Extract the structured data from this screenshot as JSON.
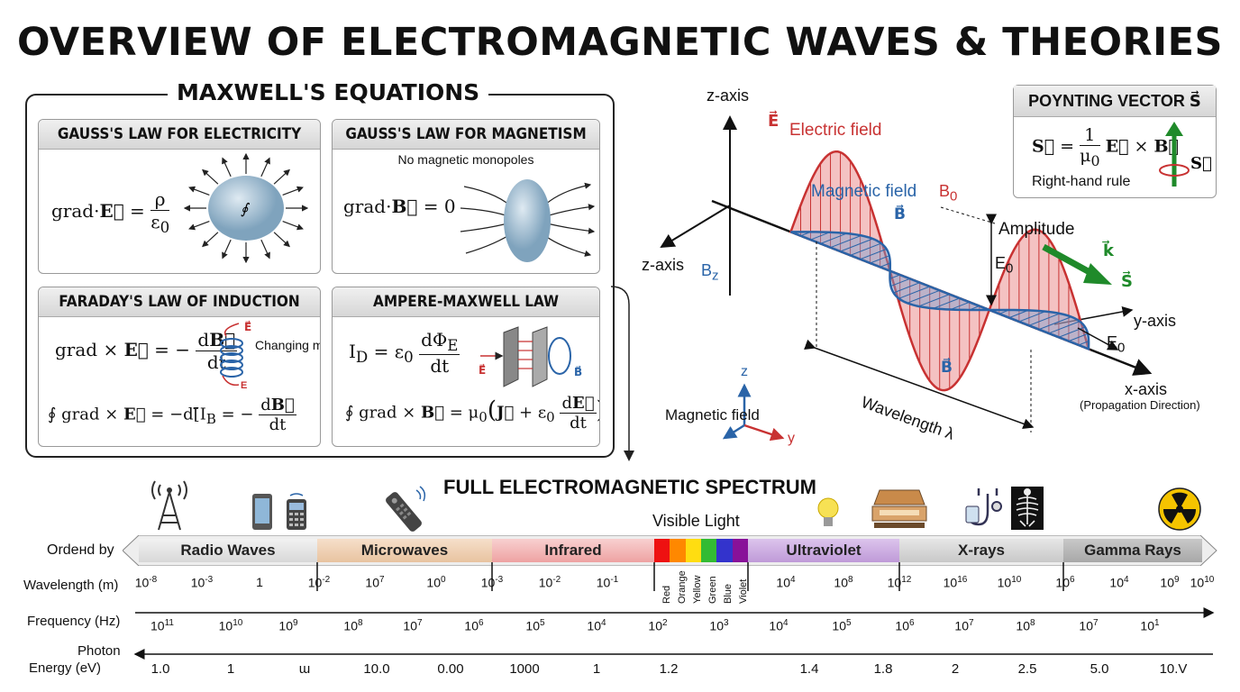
{
  "title": "OVERVIEW OF ELECTROMAGNETIC WAVES & THEORIES",
  "maxwell": {
    "title": "MAXWELL'S EQUATIONS",
    "gauss_e": {
      "title": "GAUSS'S LAW FOR ELECTRICITY"
    },
    "gauss_b": {
      "title": "GAUSS'S LAW FOR MAGNETISM",
      "subtitle": "No magnetic monopoles"
    },
    "faraday": {
      "title": "FARADAY'S LAW OF INDUCTION",
      "note": "Changing magnetic"
    },
    "ampere": {
      "title": "AMPERE-MAXWELL LAW"
    }
  },
  "wave": {
    "z_axis_top": "z-axis",
    "z_axis_left": "z-axis",
    "electric_field": "Electric field",
    "magnetic_field": "Magnetic field",
    "b0": "B",
    "bz": "B",
    "amplitude": "Amplitude",
    "e0": "E",
    "e0_right": "E",
    "y_axis": "y-axis",
    "x_axis": "x-axis",
    "propagation": "(Propagation Direction)",
    "wavelength": "Wavelength λ",
    "mag_field_legend": "Magnetic field",
    "axis_z": "z",
    "axis_y": "y"
  },
  "poynting": {
    "title": "POYNTING VECTOR",
    "rule": "Right-hand rule"
  },
  "spectrum": {
    "title": "FULL ELECTROMAGNETIC SPECTRUM",
    "visible_light": "Visible Light",
    "ordered_by": "Ordeнd by",
    "bands": [
      "Radio Waves",
      "Microwaves",
      "Infrared",
      "Ultraviolet",
      "X-rays",
      "Gamma Rays"
    ],
    "visible_colors": [
      "Red",
      "Orange",
      "Yellow",
      "Green",
      "Blue",
      "Violet"
    ],
    "wavelength_label": "Wavelength (m)",
    "frequency_label": "Frequency (Hz)",
    "photon_label_1": "Photon",
    "photon_label_2": "Energy (eV)",
    "wavelength_ticks": [
      "10-8",
      "10-3",
      "1",
      "10-2",
      "107",
      "100",
      "10-3",
      "10-2",
      "10-1",
      "104",
      "108",
      "1012",
      "1016",
      "1010",
      "106",
      "104",
      "109",
      "1010"
    ],
    "frequency_ticks": [
      "1011",
      "1010",
      "109",
      "108",
      "107",
      "106",
      "105",
      "104",
      "102",
      "103",
      "104",
      "105",
      "106",
      "107",
      "108",
      "107",
      "101"
    ],
    "energy_ticks": [
      "1.0",
      "1",
      "ɯ",
      "10.0",
      "0.00",
      "1000",
      "1",
      "1.2",
      "1.4",
      "1.8",
      "2",
      "2.5",
      "5.0",
      "10.V"
    ]
  },
  "colors": {
    "electric": "#c83232",
    "magnetic": "#2a64a8",
    "poynting": "#1f8a2a"
  }
}
